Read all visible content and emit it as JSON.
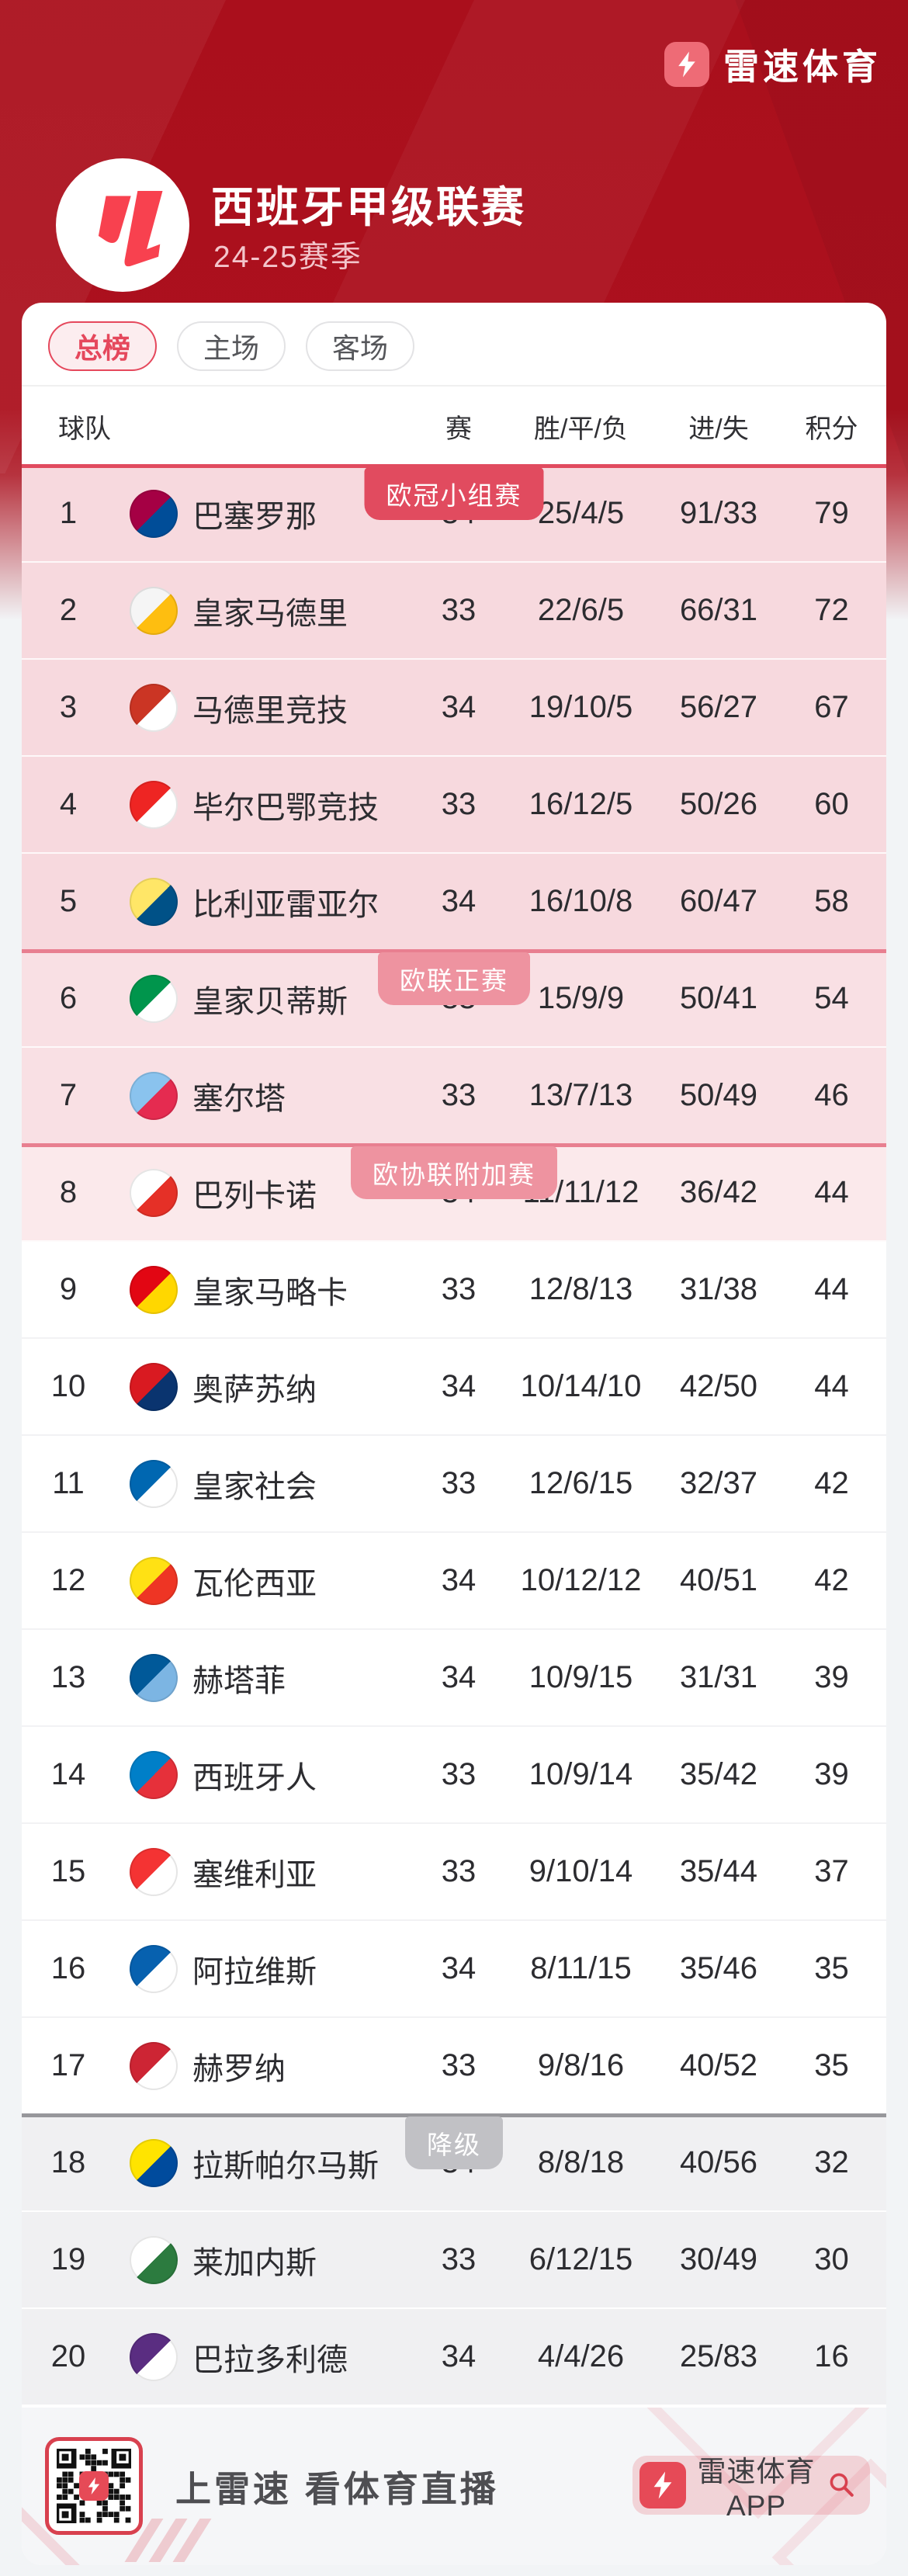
{
  "topbar": {
    "brand": "雷速体育"
  },
  "header": {
    "title": "西班牙甲级联赛",
    "season": "24-25赛季"
  },
  "tabs": [
    {
      "label": "总榜",
      "active": true
    },
    {
      "label": "主场",
      "active": false
    },
    {
      "label": "客场",
      "active": false
    }
  ],
  "table": {
    "columns": {
      "team": "球队",
      "games": "赛",
      "wdl": "胜/平/负",
      "goals": "进/失",
      "points": "积分"
    },
    "zone_markers": [
      {
        "before_rank": 1,
        "label": "欧冠小组赛",
        "badge_color": "#E14B5F",
        "line_color": "#E14B5F"
      },
      {
        "before_rank": 6,
        "label": "欧联正赛",
        "badge_color": "#EE93A0",
        "line_color": "#E87F90"
      },
      {
        "before_rank": 8,
        "label": "欧协联附加赛",
        "badge_color": "#EE93A0",
        "line_color": "#E87F90"
      },
      {
        "before_rank": 18,
        "label": "降级",
        "badge_color": "#C1C1C5",
        "line_color": "#97979B"
      }
    ],
    "rows": [
      {
        "rank": 1,
        "name": "巴塞罗那",
        "games": "34",
        "wdl": "25/4/5",
        "goals": "91/33",
        "points": "79",
        "zone": "ucl",
        "logo_colors": [
          "#A50044",
          "#004D98"
        ]
      },
      {
        "rank": 2,
        "name": "皇家马德里",
        "games": "33",
        "wdl": "22/6/5",
        "goals": "66/31",
        "points": "72",
        "zone": "ucl",
        "logo_colors": [
          "#F5F5F5",
          "#FEBE10"
        ]
      },
      {
        "rank": 3,
        "name": "马德里竞技",
        "games": "34",
        "wdl": "19/10/5",
        "goals": "56/27",
        "points": "67",
        "zone": "ucl",
        "logo_colors": [
          "#CB3524",
          "#FFFFFF"
        ]
      },
      {
        "rank": 4,
        "name": "毕尔巴鄂竞技",
        "games": "33",
        "wdl": "16/12/5",
        "goals": "50/26",
        "points": "60",
        "zone": "ucl",
        "logo_colors": [
          "#EE2523",
          "#FFFFFF"
        ]
      },
      {
        "rank": 5,
        "name": "比利亚雷亚尔",
        "games": "34",
        "wdl": "16/10/8",
        "goals": "60/47",
        "points": "58",
        "zone": "ucl",
        "logo_colors": [
          "#FFE667",
          "#005187"
        ]
      },
      {
        "rank": 6,
        "name": "皇家贝蒂斯",
        "games": "33",
        "wdl": "15/9/9",
        "goals": "50/41",
        "points": "54",
        "zone": "uel",
        "logo_colors": [
          "#00954C",
          "#FFFFFF"
        ]
      },
      {
        "rank": 7,
        "name": "塞尔塔",
        "games": "33",
        "wdl": "13/7/13",
        "goals": "50/49",
        "points": "46",
        "zone": "uel",
        "logo_colors": [
          "#8AC3EE",
          "#E52B50"
        ]
      },
      {
        "rank": 8,
        "name": "巴列卡诺",
        "games": "34",
        "wdl": "11/11/12",
        "goals": "36/42",
        "points": "44",
        "zone": "uecl",
        "logo_colors": [
          "#FFFFFF",
          "#E53027"
        ]
      },
      {
        "rank": 9,
        "name": "皇家马略卡",
        "games": "33",
        "wdl": "12/8/13",
        "goals": "31/38",
        "points": "44",
        "zone": "none",
        "logo_colors": [
          "#E20613",
          "#FFD700"
        ]
      },
      {
        "rank": 10,
        "name": "奥萨苏纳",
        "games": "34",
        "wdl": "10/14/10",
        "goals": "42/50",
        "points": "44",
        "zone": "none",
        "logo_colors": [
          "#D91A21",
          "#0A346F"
        ]
      },
      {
        "rank": 11,
        "name": "皇家社会",
        "games": "33",
        "wdl": "12/6/15",
        "goals": "32/37",
        "points": "42",
        "zone": "none",
        "logo_colors": [
          "#0067B1",
          "#FFFFFF"
        ]
      },
      {
        "rank": 12,
        "name": "瓦伦西亚",
        "games": "34",
        "wdl": "10/12/12",
        "goals": "40/51",
        "points": "42",
        "zone": "none",
        "logo_colors": [
          "#FFE114",
          "#EE3524"
        ]
      },
      {
        "rank": 13,
        "name": "赫塔菲",
        "games": "34",
        "wdl": "10/9/15",
        "goals": "31/31",
        "points": "39",
        "zone": "none",
        "logo_colors": [
          "#005999",
          "#7CB5E3"
        ]
      },
      {
        "rank": 14,
        "name": "西班牙人",
        "games": "33",
        "wdl": "10/9/14",
        "goals": "35/42",
        "points": "39",
        "zone": "none",
        "logo_colors": [
          "#007FC8",
          "#E6303A"
        ]
      },
      {
        "rank": 15,
        "name": "塞维利亚",
        "games": "33",
        "wdl": "9/10/14",
        "goals": "35/44",
        "points": "37",
        "zone": "none",
        "logo_colors": [
          "#F43333",
          "#FFFFFF"
        ]
      },
      {
        "rank": 16,
        "name": "阿拉维斯",
        "games": "34",
        "wdl": "8/11/15",
        "goals": "35/46",
        "points": "35",
        "zone": "none",
        "logo_colors": [
          "#0761AF",
          "#FFFFFF"
        ]
      },
      {
        "rank": 17,
        "name": "赫罗纳",
        "games": "33",
        "wdl": "9/8/16",
        "goals": "40/52",
        "points": "35",
        "zone": "none",
        "logo_colors": [
          "#CD2534",
          "#FFFFFF"
        ]
      },
      {
        "rank": 18,
        "name": "拉斯帕尔马斯",
        "games": "34",
        "wdl": "8/8/18",
        "goals": "40/56",
        "points": "32",
        "zone": "releg",
        "logo_colors": [
          "#FFE400",
          "#004B9D"
        ]
      },
      {
        "rank": 19,
        "name": "莱加内斯",
        "games": "33",
        "wdl": "6/12/15",
        "goals": "30/49",
        "points": "30",
        "zone": "releg",
        "logo_colors": [
          "#FFFFFF",
          "#2C7B3F"
        ]
      },
      {
        "rank": 20,
        "name": "巴拉多利德",
        "games": "34",
        "wdl": "4/4/26",
        "goals": "25/83",
        "points": "16",
        "zone": "releg",
        "logo_colors": [
          "#5A2D81",
          "#FFFFFF"
        ]
      }
    ]
  },
  "footer": {
    "slogan": "上雷速 看体育直播",
    "app_button": "雷速体育APP"
  },
  "colors": {
    "header_red": "#AC111E",
    "accent_red": "#E5485C",
    "zone_ucl_bg": "#F7D9DE",
    "zone_uel_bg": "#F9E0E4",
    "zone_uecl_bg": "#FBE9EB",
    "zone_releg_bg": "#F0F0F2",
    "footer_bg": "#F5F6F8"
  }
}
